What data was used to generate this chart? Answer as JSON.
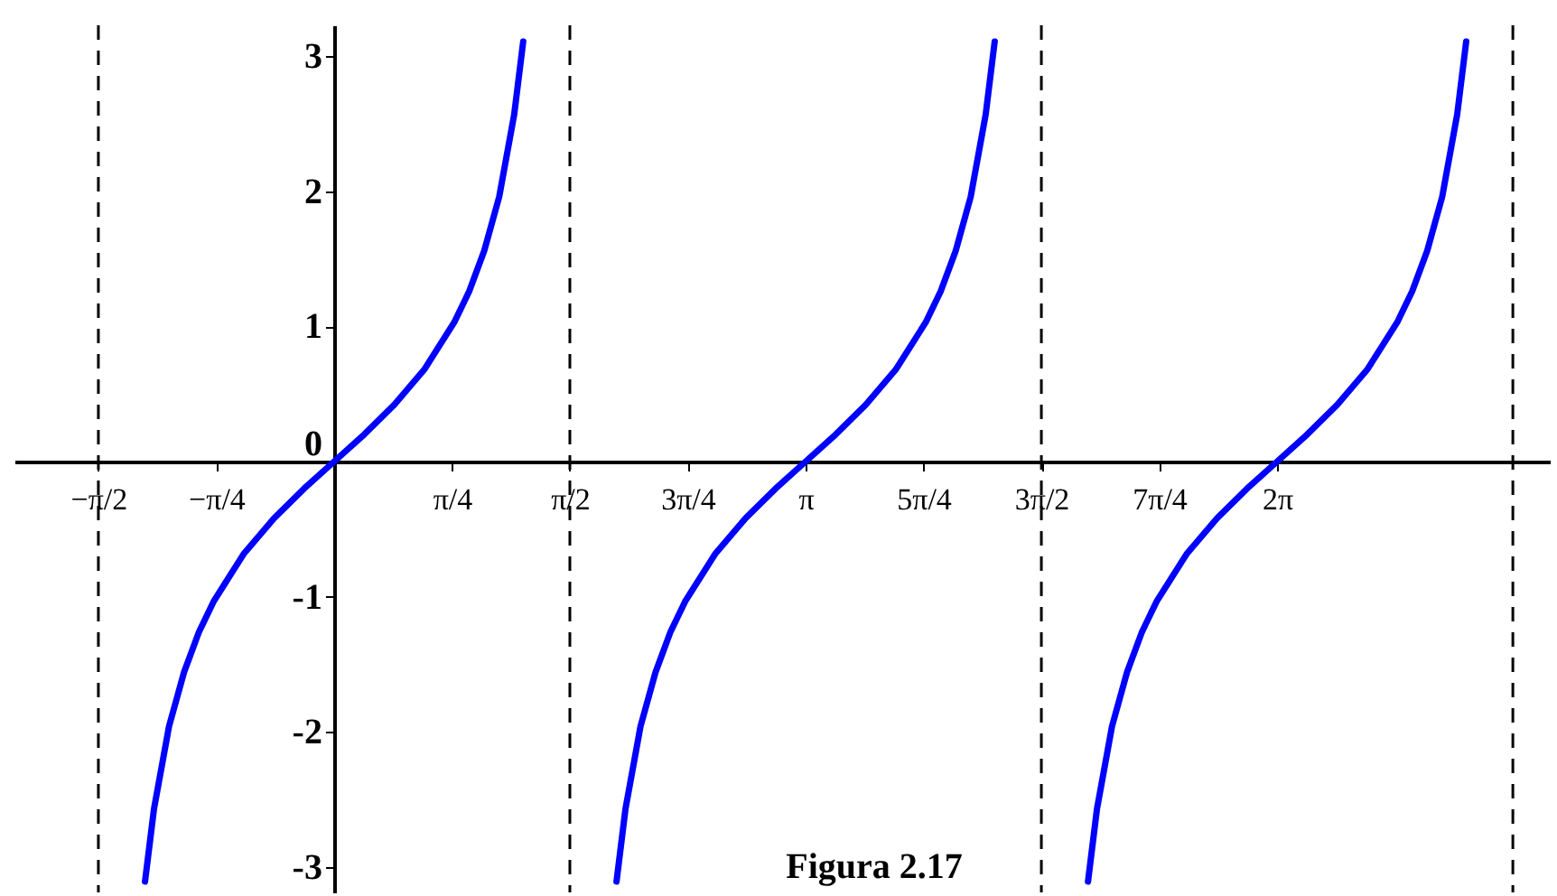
{
  "chart_data": {
    "type": "line",
    "xlim": [
      -2.13,
      8.1
    ],
    "ylim": [
      -3.19,
      3.23
    ],
    "xticks": [
      {
        "value": -1.5708,
        "label": "−π/2"
      },
      {
        "value": -0.7854,
        "label": "−π/4"
      },
      {
        "value": 0.7854,
        "label": "π/4"
      },
      {
        "value": 1.5708,
        "label": "π/2"
      },
      {
        "value": 2.3562,
        "label": "3π/4"
      },
      {
        "value": 3.1416,
        "label": "π"
      },
      {
        "value": 3.927,
        "label": "5π/4"
      },
      {
        "value": 4.7124,
        "label": "3π/2"
      },
      {
        "value": 5.4978,
        "label": "7π/4"
      },
      {
        "value": 6.2832,
        "label": "2π"
      }
    ],
    "yticks": [
      -3,
      -2,
      -1,
      0,
      1,
      2,
      3
    ],
    "series": [
      {
        "color": "#0000ff",
        "x": [
          -1.26,
          -1.2,
          -1.1,
          -1.0,
          -0.9,
          -0.8,
          -0.6,
          -0.4,
          -0.2,
          0,
          0.2,
          0.4,
          0.6,
          0.8,
          0.9,
          1.0,
          1.1,
          1.2,
          1.26
        ],
        "values": [
          -3.11,
          -2.57,
          -1.96,
          -1.56,
          -1.26,
          -1.03,
          -0.68,
          -0.42,
          -0.2,
          0,
          0.2,
          0.42,
          0.68,
          1.03,
          1.26,
          1.56,
          1.96,
          2.57,
          3.11
        ]
      },
      {
        "color": "#0000ff",
        "x": [
          1.8816,
          1.9416,
          2.0416,
          2.1416,
          2.2416,
          2.3416,
          2.5416,
          2.7416,
          2.9416,
          3.1416,
          3.3416,
          3.5416,
          3.7416,
          3.9416,
          4.0416,
          4.1416,
          4.2416,
          4.3416,
          4.4016
        ],
        "values": [
          -3.11,
          -2.57,
          -1.96,
          -1.56,
          -1.26,
          -1.03,
          -0.68,
          -0.42,
          -0.2,
          0,
          0.2,
          0.42,
          0.68,
          1.03,
          1.26,
          1.56,
          1.96,
          2.57,
          3.11
        ]
      },
      {
        "color": "#0000ff",
        "x": [
          5.0232,
          5.0832,
          5.1832,
          5.2832,
          5.3832,
          5.4832,
          5.6832,
          5.8832,
          6.0832,
          6.2832,
          6.4832,
          6.6832,
          6.8832,
          7.0832,
          7.1832,
          7.2832,
          7.3832,
          7.4832,
          7.5432
        ],
        "values": [
          -3.11,
          -2.57,
          -1.96,
          -1.56,
          -1.26,
          -1.03,
          -0.68,
          -0.42,
          -0.2,
          0,
          0.2,
          0.42,
          0.68,
          1.03,
          1.26,
          1.56,
          1.96,
          2.57,
          3.11
        ]
      }
    ],
    "ref_lines": [
      {
        "axis": "x",
        "value": -1.5708,
        "color": "#000000",
        "line_style": "dashed"
      },
      {
        "axis": "x",
        "value": 1.5708,
        "color": "#000000",
        "line_style": "dashed"
      },
      {
        "axis": "x",
        "value": 4.7124,
        "color": "#000000",
        "line_style": "dashed"
      },
      {
        "axis": "x",
        "value": 7.854,
        "color": "#000000",
        "line_style": "dashed"
      }
    ],
    "annotations": [
      "Figura 2.17"
    ]
  }
}
